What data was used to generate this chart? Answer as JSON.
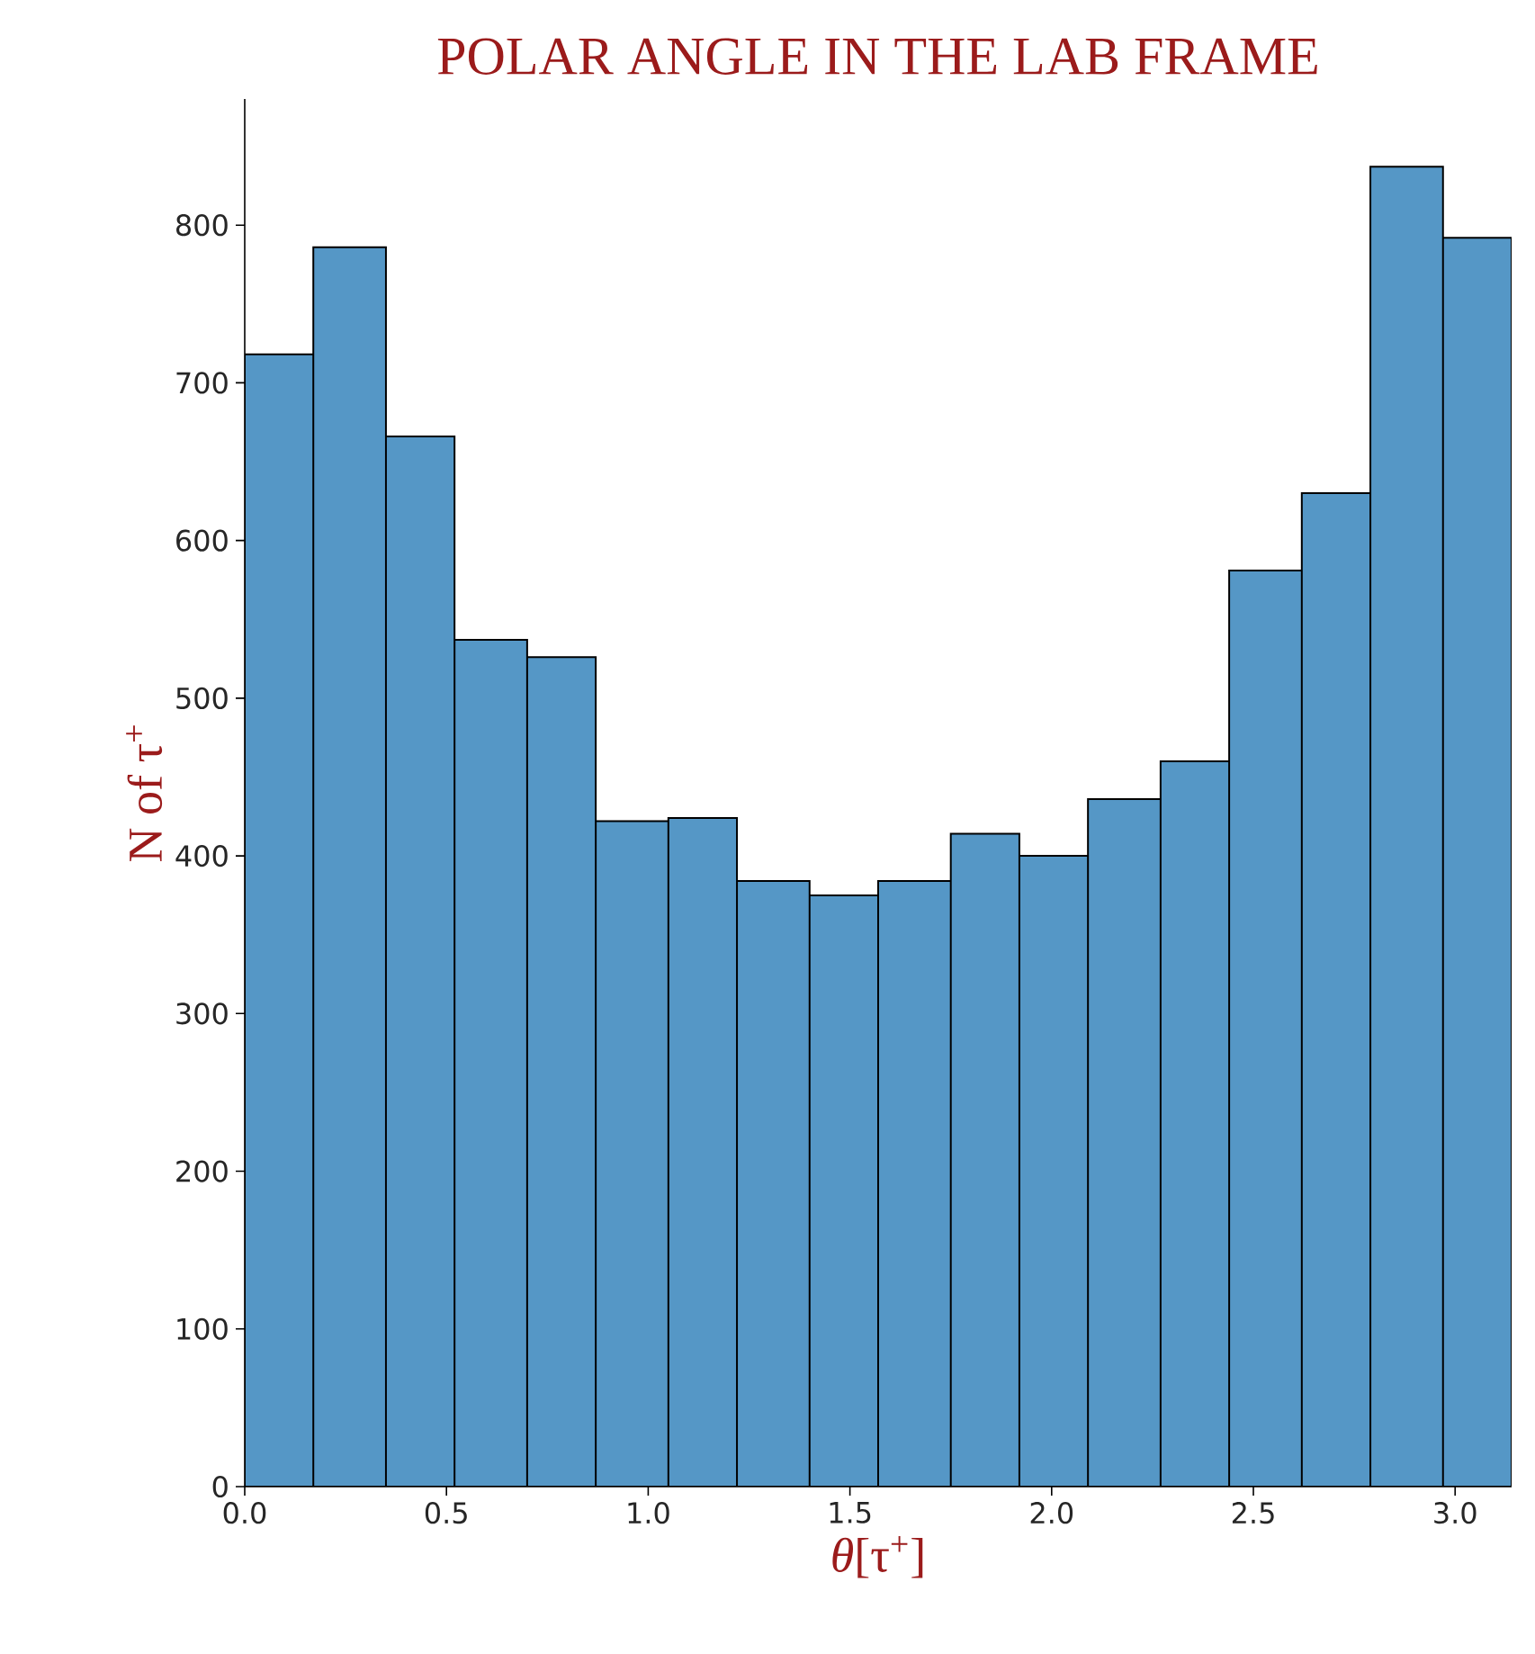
{
  "chart_data": {
    "type": "histogram",
    "title": "POLAR ANGLE IN THE LAB FRAME",
    "xlabel": "*θ*[τ$^{+}$]",
    "ylabel": "N of τ$^{+}$",
    "bins": [
      0,
      0.17,
      0.35,
      0.52,
      0.7,
      0.87,
      1.05,
      1.22,
      1.4,
      1.57,
      1.75,
      1.92,
      2.09,
      2.27,
      2.44,
      2.62,
      2.79,
      2.97,
      3.14
    ],
    "values": [
      718,
      786,
      666,
      537,
      526,
      422,
      424,
      384,
      375,
      384,
      414,
      400,
      436,
      460,
      581,
      630,
      837,
      792
    ],
    "color": "#5597c6",
    "xlim": [
      0,
      3.14
    ],
    "ylim": [
      0,
      880
    ],
    "xticks": [
      {
        "value": 0,
        "label": "0.0"
      },
      {
        "value": 0.5,
        "label": "0.5"
      },
      {
        "value": 1,
        "label": "1.0"
      },
      {
        "value": 1.5,
        "label": "1.5"
      },
      {
        "value": 2,
        "label": "2.0"
      },
      {
        "value": 2.5,
        "label": "2.5"
      },
      {
        "value": 3,
        "label": "3.0"
      }
    ],
    "yticks": [
      0,
      100,
      200,
      300,
      400,
      500,
      600,
      700,
      800
    ]
  }
}
